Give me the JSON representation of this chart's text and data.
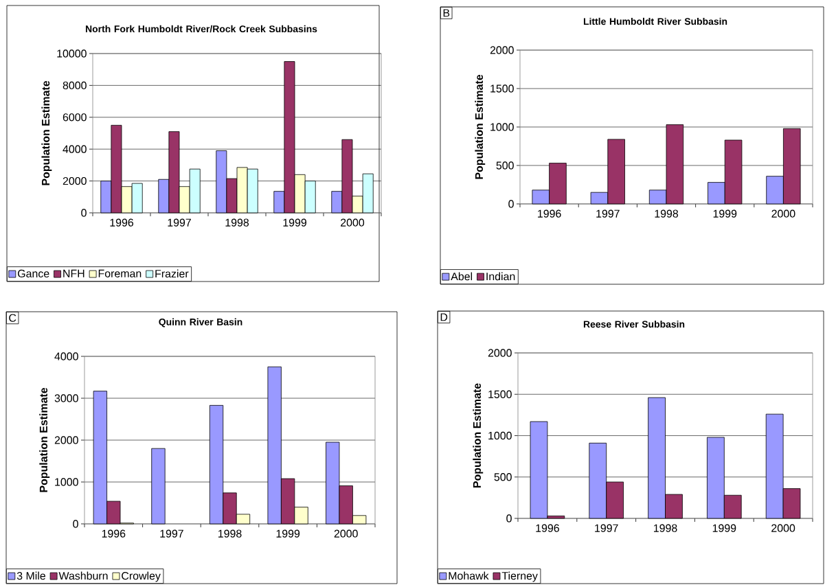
{
  "chart_data": [
    {
      "type": "bar",
      "title": "North Fork Humboldt River/Rock Creek Subbasins",
      "ylabel": "Population Estimate",
      "categories": [
        "1996",
        "1997",
        "1998",
        "1999",
        "2000"
      ],
      "series": [
        {
          "name": "Gance",
          "color": "#9999ff",
          "values": [
            2000,
            2100,
            3900,
            1350,
            1350
          ]
        },
        {
          "name": "NFH",
          "color": "#993366",
          "values": [
            5500,
            5100,
            2150,
            9500,
            4600
          ]
        },
        {
          "name": "Foreman",
          "color": "#ffffcc",
          "values": [
            1650,
            1650,
            2850,
            2400,
            1050
          ]
        },
        {
          "name": "Frazier",
          "color": "#ccffff",
          "values": [
            1850,
            2750,
            2750,
            2000,
            2450
          ]
        }
      ],
      "ylim": [
        0,
        10000
      ],
      "yticks": [
        0,
        2000,
        4000,
        6000,
        8000,
        10000
      ],
      "grid": "y",
      "legend": "bottom left"
    },
    {
      "type": "bar",
      "title": "Little Humboldt River Subbasin",
      "ylabel": "Population Estimate",
      "categories": [
        "1996",
        "1997",
        "1998",
        "1999",
        "2000"
      ],
      "series": [
        {
          "name": "Abel",
          "color": "#9999ff",
          "values": [
            180,
            150,
            180,
            280,
            360
          ]
        },
        {
          "name": "Indian",
          "color": "#993366",
          "values": [
            530,
            840,
            1030,
            830,
            980
          ]
        }
      ],
      "ylim": [
        0,
        2000
      ],
      "yticks": [
        0,
        500,
        1000,
        1500,
        2000
      ],
      "grid": "y",
      "legend": "bottom left",
      "annotations": [
        "B"
      ]
    },
    {
      "type": "bar",
      "title": "Quinn River Basin",
      "ylabel": "Population Estimate",
      "categories": [
        "1996",
        "1997",
        "1998",
        "1999",
        "2000"
      ],
      "series": [
        {
          "name": "3 Mile",
          "color": "#9999ff",
          "values": [
            3170,
            1800,
            2830,
            3750,
            1950
          ]
        },
        {
          "name": "Washburn",
          "color": "#993366",
          "values": [
            540,
            null,
            740,
            1080,
            910
          ]
        },
        {
          "name": "Crowley",
          "color": "#ffffcc",
          "values": [
            20,
            null,
            230,
            400,
            200
          ]
        }
      ],
      "ylim": [
        0,
        4000
      ],
      "yticks": [
        0,
        1000,
        2000,
        3000,
        4000
      ],
      "grid": "y",
      "legend": "bottom left",
      "annotations": [
        "C"
      ]
    },
    {
      "type": "bar",
      "title": "Reese River Subbasin",
      "ylabel": "Population Estimate",
      "categories": [
        "1996",
        "1997",
        "1998",
        "1999",
        "2000"
      ],
      "series": [
        {
          "name": "Mohawk",
          "color": "#9999ff",
          "values": [
            1170,
            910,
            1460,
            980,
            1260
          ]
        },
        {
          "name": "Tierney",
          "color": "#993366",
          "values": [
            30,
            440,
            290,
            280,
            360
          ]
        }
      ],
      "ylim": [
        0,
        2000
      ],
      "yticks": [
        0,
        500,
        1000,
        1500,
        2000
      ],
      "grid": "y",
      "legend": "bottom left",
      "annotations": [
        "D"
      ]
    }
  ]
}
